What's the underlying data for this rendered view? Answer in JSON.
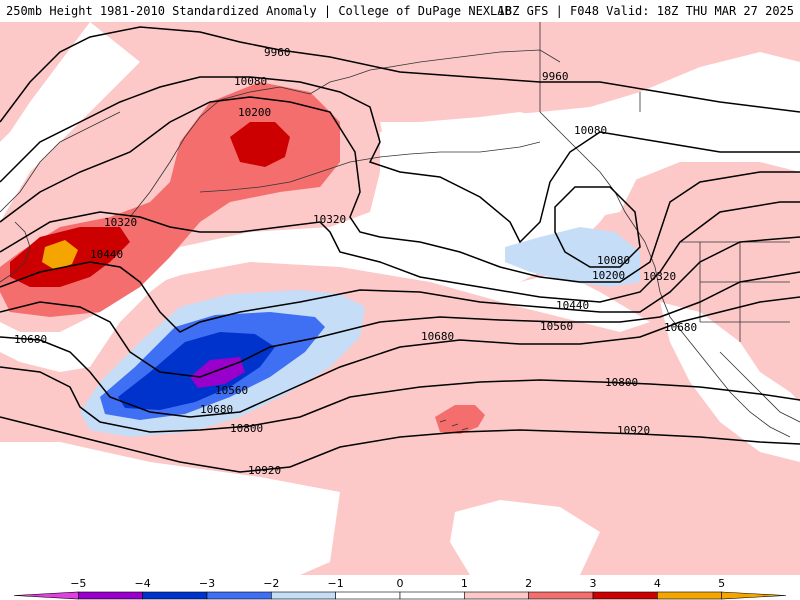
{
  "header": {
    "left_title": "250mb Height 1981-2010 Standardized Anomaly | College of DuPage NEXLAB",
    "right_title": "18Z GFS | F048 Valid: 18Z THU MAR 27 2025"
  },
  "colors": {
    "background": "#ffffff",
    "positive_1": "#fcc8c8",
    "positive_2": "#f56e6e",
    "positive_3": "#cc0000",
    "positive_4": "#f5a500",
    "negative_1": "#c6ddf7",
    "negative_2": "#3f6ff2",
    "negative_3": "#0033cc",
    "negative_4": "#9900cc",
    "coastline": "#333333",
    "contour": "#000000"
  },
  "contour_labels": [
    {
      "id": "c9960a",
      "text": "9960"
    },
    {
      "id": "c9960b",
      "text": "9960"
    },
    {
      "id": "c10080a",
      "text": "10080"
    },
    {
      "id": "c10080b",
      "text": "10080"
    },
    {
      "id": "c10080c",
      "text": "10080"
    },
    {
      "id": "c10200a",
      "text": "10200"
    },
    {
      "id": "c10200b",
      "text": "10200"
    },
    {
      "id": "c10320a",
      "text": "10320"
    },
    {
      "id": "c10320b",
      "text": "10320"
    },
    {
      "id": "c10320c",
      "text": "10320"
    },
    {
      "id": "c10440a",
      "text": "10440"
    },
    {
      "id": "c10440b",
      "text": "10440"
    },
    {
      "id": "c10560a",
      "text": "10560"
    },
    {
      "id": "c10560b",
      "text": "10560"
    },
    {
      "id": "c10680a",
      "text": "10680"
    },
    {
      "id": "c10680b",
      "text": "10680"
    },
    {
      "id": "c10680c",
      "text": "10680"
    },
    {
      "id": "c10680d",
      "text": "10680"
    },
    {
      "id": "c10800a",
      "text": "10800"
    },
    {
      "id": "c10800b",
      "text": "10800"
    },
    {
      "id": "c10920a",
      "text": "10920"
    },
    {
      "id": "c10920b",
      "text": "10920"
    }
  ],
  "colorbar": {
    "ticks": [
      "−5",
      "−4",
      "−3",
      "−2",
      "−1",
      "0",
      "1",
      "2",
      "3",
      "4",
      "5"
    ],
    "segments": [
      "#e040e0",
      "#9900cc",
      "#0033cc",
      "#3f6ff2",
      "#c6ddf7",
      "#ffffff",
      "#ffffff",
      "#fcc8c8",
      "#f56e6e",
      "#cc0000",
      "#f5a500",
      "#f5a500"
    ]
  }
}
